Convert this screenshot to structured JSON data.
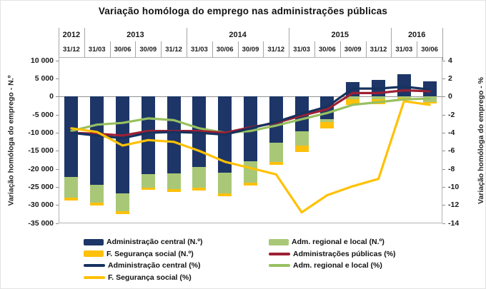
{
  "title": "Variação homóloga do emprego nas administrações públicas",
  "chart_data": {
    "type": "bar",
    "subtype": "stacked-bars-with-lines-combo",
    "categories": [
      "31/12",
      "31/03",
      "30/06",
      "30/09",
      "31/12",
      "31/03",
      "30/06",
      "30/09",
      "31/12",
      "31/03",
      "30/06",
      "30/09",
      "31/12",
      "31/03",
      "30/06"
    ],
    "year_groups": [
      {
        "label": "2012",
        "span": 1
      },
      {
        "label": "2013",
        "span": 4
      },
      {
        "label": "2014",
        "span": 4
      },
      {
        "label": "2015",
        "span": 4
      },
      {
        "label": "2016",
        "span": 2
      }
    ],
    "left_axis": {
      "title": "Variação homóloga do emprego - N.º",
      "max": 10000,
      "min": -35000,
      "step": 5000,
      "tick_labels": [
        "10 000",
        "5 000",
        "0",
        "-5 000",
        "-10 000",
        "-15 000",
        "-20 000",
        "-25 000",
        "-30 000",
        "-35 000"
      ]
    },
    "right_axis": {
      "title": "Variação homóloga do emprego - %",
      "max": 4,
      "min": -14,
      "step": 2,
      "tick_labels": [
        "4",
        "2",
        "0",
        "-2",
        "-4",
        "-6",
        "-8",
        "-10",
        "-12",
        "-14"
      ]
    },
    "bar_series": [
      {
        "name": "Administração central (N.º)",
        "color": "#1d3667",
        "values": [
          -22300,
          -24400,
          -26800,
          -21500,
          -21300,
          -19500,
          -21000,
          -17800,
          -12800,
          -9600,
          -6300,
          4100,
          4600,
          6300,
          4200
        ]
      },
      {
        "name": "Adm. regional e local (N.º)",
        "color": "#a9c877",
        "values": [
          -5600,
          -4900,
          -4800,
          -3600,
          -4200,
          -5600,
          -5700,
          -5900,
          -5300,
          -4000,
          -700,
          -700,
          -700,
          -400,
          -1400
        ]
      },
      {
        "name": "F. Segurança social  (N.º)",
        "color": "#fdc00b",
        "values": [
          -900,
          -800,
          -900,
          -700,
          -800,
          -900,
          -800,
          -800,
          -800,
          -1800,
          -1700,
          -1500,
          -1400,
          -400,
          -500
        ]
      }
    ],
    "line_series": [
      {
        "name": "Adm. regional e local (%)",
        "color": "#97c060",
        "values": [
          -3.8,
          -3.1,
          -2.9,
          -2.4,
          -2.6,
          -3.5,
          -4.0,
          -3.8,
          -3.2,
          -2.5,
          -1.8,
          -0.9,
          -0.6,
          -0.3,
          -0.2
        ]
      },
      {
        "name": "Administrações públicas (%)",
        "color": "#9e2033",
        "values": [
          -4.0,
          -4.1,
          -4.3,
          -3.8,
          -3.8,
          -3.8,
          -4.0,
          -3.4,
          -2.9,
          -2.1,
          -1.4,
          0.4,
          0.4,
          0.7,
          0.6
        ]
      },
      {
        "name": "Administração central  (%)",
        "color": "#16325f",
        "values": [
          -4.0,
          -4.3,
          -4.6,
          -4.0,
          -3.9,
          -4.0,
          -4.2,
          -3.5,
          -2.8,
          -1.9,
          -1.1,
          0.9,
          0.9,
          1.1,
          0.8
        ]
      },
      {
        "name": "F. Segurança social  (%)",
        "color": "#ffc103",
        "values": [
          -3.5,
          -3.9,
          -5.4,
          -4.8,
          -5.0,
          -6.0,
          -7.2,
          -7.9,
          -8.6,
          -12.8,
          -10.9,
          -9.9,
          -9.1,
          -0.5,
          -0.9
        ]
      }
    ],
    "grid": "zero-line-only",
    "legend_position": "bottom"
  },
  "legend": {
    "columns": [
      [
        {
          "swatch": "bar",
          "color": "#1d3667",
          "label": "Administração central (N.º)"
        },
        {
          "swatch": "bar",
          "color": "#fdc00b",
          "label": "F. Segurança social  (N.º)"
        },
        {
          "swatch": "line",
          "color": "#16325f",
          "label": "Administração central  (%)"
        },
        {
          "swatch": "line",
          "color": "#ffc103",
          "label": "F. Segurança social  (%)"
        }
      ],
      [
        {
          "swatch": "bar",
          "color": "#a9c877",
          "label": "Adm. regional e local (N.º)"
        },
        {
          "swatch": "line",
          "color": "#9e2033",
          "label": "Administrações públicas (%)"
        },
        {
          "swatch": "line",
          "color": "#97c060",
          "label": "Adm. regional e local (%)"
        }
      ]
    ]
  }
}
